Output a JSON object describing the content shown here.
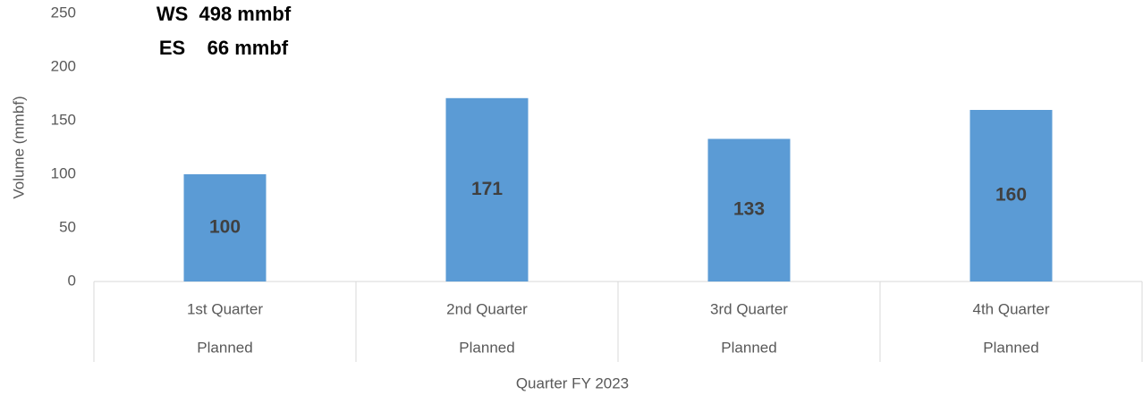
{
  "chart_data": {
    "type": "bar",
    "annotations": [
      "WS  498 mmbf",
      "ES    66 mmbf"
    ],
    "categories": [
      "1st Quarter",
      "2nd Quarter",
      "3rd Quarter",
      "4th Quarter"
    ],
    "category_groups": [
      "Planned",
      "Planned",
      "Planned",
      "Planned"
    ],
    "values": [
      100,
      171,
      133,
      160
    ],
    "color": "#5b9bd5",
    "ylim": [
      0,
      250
    ],
    "yticks": [
      0,
      50,
      100,
      150,
      200,
      250
    ],
    "ylabel": "Volume (mmbf)",
    "xlabel": "Quarter FY 2023",
    "grid": false,
    "data_labels": true
  }
}
